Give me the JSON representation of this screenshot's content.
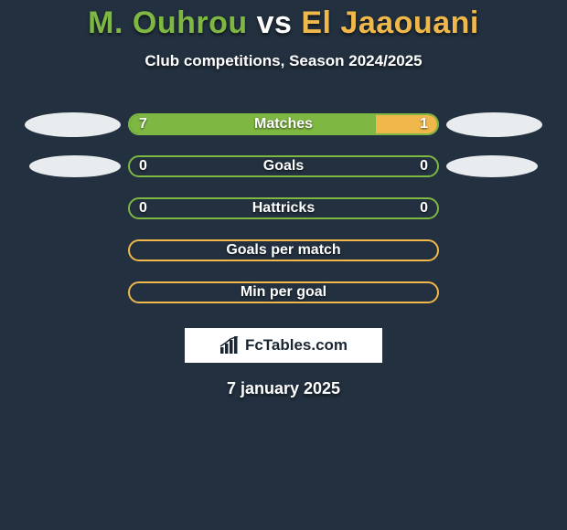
{
  "background_color": "#22303f",
  "title": {
    "player1": "M. Ouhrou",
    "vs": "vs",
    "player2": "El Jaaouani",
    "player1_color": "#7eb742",
    "player2_color": "#f0b84a",
    "fontsize": 34
  },
  "subtitle": {
    "text": "Club competitions, Season 2024/2025",
    "fontsize": 17
  },
  "pill_color": "#e9ecef",
  "stats": [
    {
      "label": "Matches",
      "left_value": "7",
      "right_value": "1",
      "left_pct": 80,
      "right_pct": 20,
      "left_fill": "#7eb742",
      "right_fill": "#f0b84a",
      "border_color": "#7eb742",
      "show_left_pill": true,
      "show_right_pill": true,
      "pill_small": false
    },
    {
      "label": "Goals",
      "left_value": "0",
      "right_value": "0",
      "left_pct": 0,
      "right_pct": 0,
      "left_fill": "#7eb742",
      "right_fill": "#f0b84a",
      "border_color": "#7eb742",
      "show_left_pill": true,
      "show_right_pill": true,
      "pill_small": true
    },
    {
      "label": "Hattricks",
      "left_value": "0",
      "right_value": "0",
      "left_pct": 0,
      "right_pct": 0,
      "left_fill": "#7eb742",
      "right_fill": "#f0b84a",
      "border_color": "#7eb742",
      "show_left_pill": false,
      "show_right_pill": false,
      "pill_small": false
    },
    {
      "label": "Goals per match",
      "left_value": "",
      "right_value": "",
      "left_pct": 0,
      "right_pct": 0,
      "left_fill": "#7eb742",
      "right_fill": "#f0b84a",
      "border_color": "#f0b84a",
      "show_left_pill": false,
      "show_right_pill": false,
      "pill_small": false
    },
    {
      "label": "Min per goal",
      "left_value": "",
      "right_value": "",
      "left_pct": 0,
      "right_pct": 0,
      "left_fill": "#7eb742",
      "right_fill": "#f0b84a",
      "border_color": "#f0b84a",
      "show_left_pill": false,
      "show_right_pill": false,
      "pill_small": false
    }
  ],
  "logo_text": "FcTables.com",
  "date": "7 january 2025"
}
